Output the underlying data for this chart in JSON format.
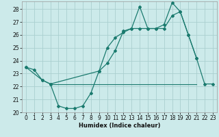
{
  "xlabel": "Humidex (Indice chaleur)",
  "background_color": "#cceaea",
  "grid_color": "#aacfcf",
  "line_color": "#1a7a6e",
  "xlim": [
    -0.5,
    23.5
  ],
  "ylim": [
    20.0,
    28.6
  ],
  "yticks": [
    20,
    21,
    22,
    23,
    24,
    25,
    26,
    27,
    28
  ],
  "xticks": [
    0,
    1,
    2,
    3,
    4,
    5,
    6,
    7,
    8,
    9,
    10,
    11,
    12,
    13,
    14,
    15,
    16,
    17,
    18,
    19,
    20,
    21,
    22,
    23
  ],
  "line1_x": [
    0,
    1,
    2,
    3,
    4,
    5,
    6,
    7,
    8,
    9,
    10,
    11,
    12,
    13,
    14,
    15,
    16,
    17,
    18,
    19,
    20,
    21,
    22,
    23
  ],
  "line1_y": [
    23.5,
    23.3,
    22.5,
    22.2,
    20.5,
    20.3,
    20.3,
    20.5,
    21.5,
    23.2,
    23.8,
    24.8,
    26.3,
    26.5,
    26.5,
    26.5,
    26.5,
    26.5,
    27.5,
    27.8,
    26.0,
    24.2,
    22.2,
    22.2
  ],
  "line2_x": [
    0,
    2,
    3,
    9,
    10,
    11,
    12,
    13,
    14,
    15,
    16,
    17,
    18,
    19,
    20,
    21
  ],
  "line2_y": [
    23.5,
    22.5,
    22.2,
    23.2,
    25.0,
    25.8,
    26.2,
    26.5,
    28.2,
    26.5,
    26.5,
    26.8,
    28.5,
    27.8,
    26.0,
    24.2
  ],
  "line3_x": [
    3,
    21
  ],
  "line3_y": [
    22.2,
    22.2
  ],
  "xlabel_fontsize": 6.0,
  "tick_fontsize": 5.5
}
